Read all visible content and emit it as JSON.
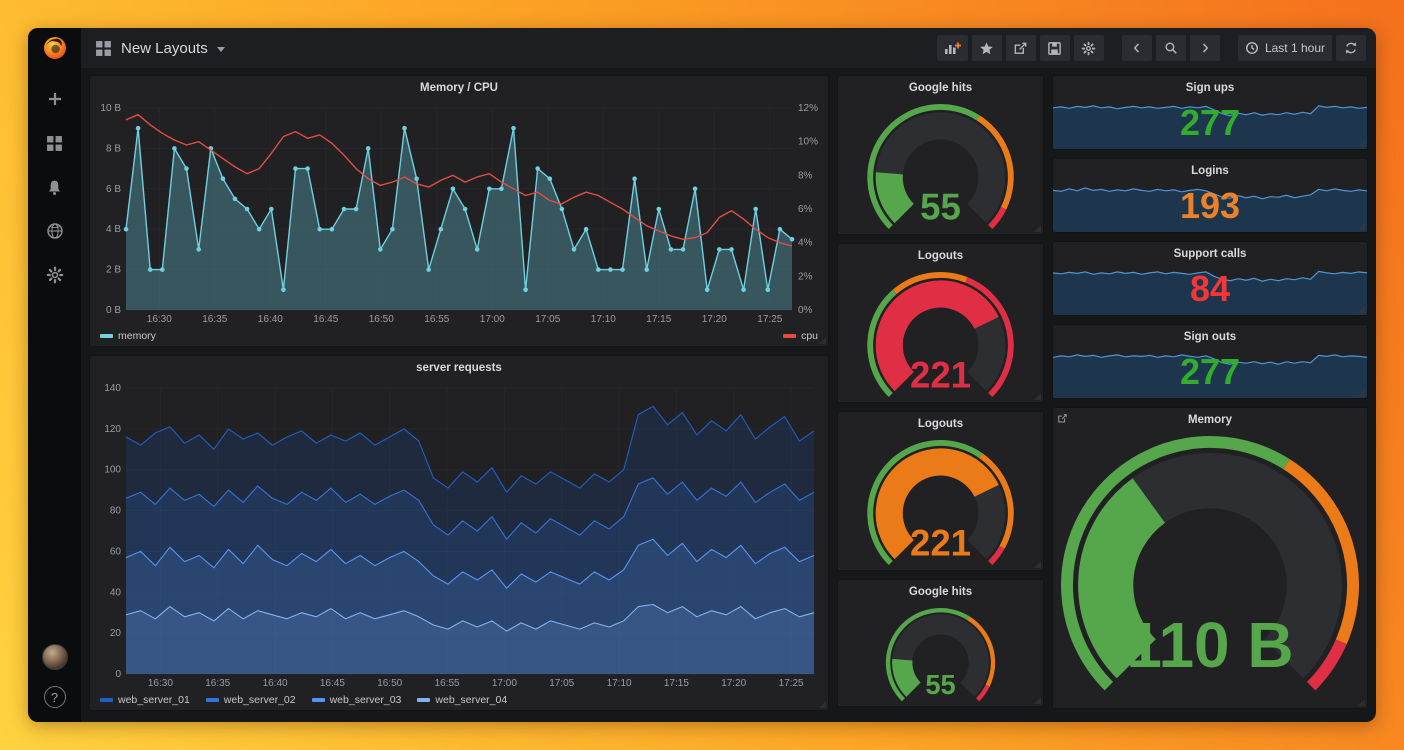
{
  "navbar": {
    "title": "New Layouts",
    "time_range_label": "Last 1 hour"
  },
  "sidebar": {
    "items": [
      {
        "icon": "plus-icon"
      },
      {
        "icon": "dashboards-grid-icon"
      },
      {
        "icon": "bell-icon"
      },
      {
        "icon": "globe-icon"
      },
      {
        "icon": "gear-icon"
      }
    ],
    "bottom": [
      {
        "icon": "user-avatar"
      },
      {
        "icon": "help-icon"
      }
    ]
  },
  "toolbar_icons": [
    "add-panel-icon",
    "star-icon",
    "share-icon",
    "save-icon",
    "gear-icon",
    "chevron-left-icon",
    "magnifier-icon",
    "chevron-right-icon",
    "clock-icon",
    "refresh-icon"
  ],
  "colors": {
    "green": "#56a64b",
    "orange": "#eb7b18",
    "red": "#e02f44",
    "stat_green": "#32ac2d",
    "stat_orange": "#ed8128",
    "stat_red": "#f53636",
    "grid": "#25272c",
    "axis_text": "#9a9da3",
    "spark_line": "#4e95d6",
    "spark_fill": "rgba(24,94,158,0.35)"
  },
  "chart_data": [
    {
      "id": "memory_cpu",
      "type": "line",
      "title": "Memory / CPU",
      "x_ticks": [
        {
          "label": "16:30",
          "pos": 0.05
        },
        {
          "label": "16:35",
          "pos": 0.1333
        },
        {
          "label": "16:40",
          "pos": 0.2167
        },
        {
          "label": "16:45",
          "pos": 0.3
        },
        {
          "label": "16:50",
          "pos": 0.3833
        },
        {
          "label": "16:55",
          "pos": 0.4667
        },
        {
          "label": "17:00",
          "pos": 0.55
        },
        {
          "label": "17:05",
          "pos": 0.6333
        },
        {
          "label": "17:10",
          "pos": 0.7167
        },
        {
          "label": "17:15",
          "pos": 0.8
        },
        {
          "label": "17:20",
          "pos": 0.8833
        },
        {
          "label": "17:25",
          "pos": 0.9667
        }
      ],
      "y_left": {
        "max": 10,
        "ticks": [
          "10 B",
          "8 B",
          "6 B",
          "4 B",
          "2 B",
          "0 B"
        ],
        "tick_vals": [
          10,
          8,
          6,
          4,
          2,
          0
        ]
      },
      "y_right": {
        "max": 12,
        "ticks": [
          "12%",
          "10%",
          "8%",
          "6%",
          "4%",
          "2%",
          "0%"
        ],
        "tick_vals": [
          12,
          10,
          8,
          6,
          4,
          2,
          0
        ]
      },
      "series": [
        {
          "name": "memory",
          "color": "#6ed0e0",
          "axis": "left",
          "fill": 0.3,
          "markers": true,
          "width": 1.4,
          "values": [
            4,
            9,
            2,
            2,
            8,
            7,
            3,
            8,
            6.5,
            5.5,
            5,
            4,
            5,
            1,
            7,
            7,
            4,
            4,
            5,
            5,
            8,
            3,
            4,
            9,
            6.5,
            2,
            4,
            6,
            5,
            3,
            6,
            6,
            9,
            1,
            7,
            6.5,
            5,
            3,
            4,
            2,
            2,
            2,
            6.5,
            2,
            5,
            3,
            3,
            6,
            1,
            3,
            3,
            1,
            5,
            1,
            4,
            3.5
          ]
        },
        {
          "name": "cpu",
          "color": "#e24d42",
          "axis": "right",
          "fill": 0,
          "markers": false,
          "width": 1.4,
          "values": [
            11.3,
            11.6,
            11,
            10.5,
            10.1,
            9.8,
            10,
            9.5,
            9,
            8.5,
            8.1,
            8.4,
            9.3,
            10.3,
            10.6,
            10.2,
            10.4,
            9.9,
            9.2,
            8.4,
            7.8,
            7.4,
            7.6,
            7.9,
            7.5,
            7.3,
            7.7,
            8,
            7.6,
            7.9,
            8.1,
            7.6,
            7.2,
            6.8,
            7,
            6.5,
            6.3,
            6.7,
            7,
            6.8,
            6.4,
            6,
            5.5,
            5,
            4.7,
            4.4,
            4.2,
            4.3,
            4.6,
            5.5,
            5.9,
            5.4,
            4.8,
            4.3,
            4,
            3.8
          ]
        }
      ]
    },
    {
      "id": "server_requests",
      "type": "area",
      "title": "server requests",
      "x_ticks": [
        {
          "label": "16:30",
          "pos": 0.05
        },
        {
          "label": "16:35",
          "pos": 0.1333
        },
        {
          "label": "16:40",
          "pos": 0.2167
        },
        {
          "label": "16:45",
          "pos": 0.3
        },
        {
          "label": "16:50",
          "pos": 0.3833
        },
        {
          "label": "16:55",
          "pos": 0.4667
        },
        {
          "label": "17:00",
          "pos": 0.55
        },
        {
          "label": "17:05",
          "pos": 0.6333
        },
        {
          "label": "17:10",
          "pos": 0.7167
        },
        {
          "label": "17:15",
          "pos": 0.8
        },
        {
          "label": "17:20",
          "pos": 0.8833
        },
        {
          "label": "17:25",
          "pos": 0.9667
        }
      ],
      "y_left": {
        "max": 140,
        "ticks": [
          "140",
          "120",
          "100",
          "80",
          "60",
          "40",
          "20",
          "0"
        ],
        "tick_vals": [
          140,
          120,
          100,
          80,
          60,
          40,
          20,
          0
        ]
      },
      "series": [
        {
          "name": "web_server_01",
          "color": "#1f60c4",
          "axis": "left",
          "fill": 0.16,
          "markers": false,
          "width": 1.1,
          "values": [
            116,
            112,
            118,
            121,
            113,
            117,
            110,
            120,
            115,
            118,
            112,
            116,
            119,
            113,
            117,
            114,
            118,
            112,
            116,
            120,
            114,
            96,
            91,
            99,
            94,
            101,
            89,
            97,
            93,
            99,
            95,
            91,
            98,
            94,
            100,
            127,
            131,
            122,
            128,
            117,
            124,
            119,
            127,
            115,
            121,
            126,
            114,
            119
          ]
        },
        {
          "name": "web_server_02",
          "color": "#3274d9",
          "axis": "left",
          "fill": 0.16,
          "markers": false,
          "width": 1.1,
          "values": [
            86,
            89,
            83,
            91,
            85,
            88,
            82,
            90,
            84,
            92,
            86,
            83,
            89,
            85,
            91,
            84,
            88,
            83,
            87,
            90,
            85,
            73,
            68,
            75,
            70,
            77,
            66,
            74,
            69,
            76,
            72,
            68,
            75,
            71,
            77,
            93,
            96,
            88,
            94,
            85,
            91,
            87,
            94,
            84,
            89,
            93,
            85,
            89
          ]
        },
        {
          "name": "web_server_03",
          "color": "#5794f2",
          "axis": "left",
          "fill": 0.16,
          "markers": false,
          "width": 1.1,
          "values": [
            57,
            60,
            53,
            62,
            55,
            58,
            52,
            61,
            54,
            63,
            56,
            53,
            59,
            55,
            61,
            54,
            58,
            53,
            57,
            60,
            55,
            48,
            44,
            50,
            46,
            51,
            42,
            49,
            45,
            50,
            47,
            44,
            50,
            46,
            51,
            63,
            66,
            58,
            64,
            55,
            61,
            57,
            63,
            54,
            59,
            62,
            55,
            58
          ]
        },
        {
          "name": "web_server_04",
          "color": "#7eb3f2",
          "axis": "left",
          "fill": 0.16,
          "markers": false,
          "width": 1.1,
          "values": [
            29,
            31,
            27,
            33,
            28,
            30,
            26,
            32,
            27,
            31,
            29,
            27,
            30,
            28,
            32,
            27,
            30,
            27,
            29,
            31,
            28,
            24,
            22,
            26,
            23,
            26,
            21,
            25,
            22,
            26,
            24,
            22,
            25,
            23,
            26,
            33,
            34,
            30,
            33,
            28,
            31,
            29,
            33,
            27,
            30,
            32,
            28,
            30
          ]
        }
      ]
    },
    {
      "id": "gauge_google_hits",
      "type": "gauge",
      "title": "Google hits",
      "value": "55",
      "min": 0,
      "max": 300,
      "fraction": 0.183,
      "color": "#56a64b",
      "ring": [
        {
          "to": 0.62,
          "color": "#56a64b"
        },
        {
          "to": 0.93,
          "color": "#eb7b18"
        },
        {
          "to": 1,
          "color": "#e02f44"
        }
      ]
    },
    {
      "id": "gauge_logouts_red",
      "type": "gauge",
      "title": "Logouts",
      "value": "221",
      "min": 0,
      "max": 300,
      "fraction": 0.737,
      "color": "#e02f44",
      "ring": [
        {
          "to": 0.35,
          "color": "#56a64b"
        },
        {
          "to": 0.58,
          "color": "#eb7b18"
        },
        {
          "to": 1,
          "color": "#e02f44"
        }
      ]
    },
    {
      "id": "gauge_logouts_orange",
      "type": "gauge",
      "title": "Logouts",
      "value": "221",
      "min": 0,
      "max": 300,
      "fraction": 0.737,
      "color": "#eb7b18",
      "ring": [
        {
          "to": 0.63,
          "color": "#56a64b"
        },
        {
          "to": 0.94,
          "color": "#eb7b18"
        },
        {
          "to": 1,
          "color": "#e02f44"
        }
      ]
    },
    {
      "id": "gauge_google_hits_small",
      "type": "gauge",
      "title": "Google hits",
      "value": "55",
      "min": 0,
      "max": 300,
      "fraction": 0.183,
      "color": "#56a64b",
      "ring": [
        {
          "to": 0.62,
          "color": "#56a64b"
        },
        {
          "to": 0.93,
          "color": "#eb7b18"
        },
        {
          "to": 1,
          "color": "#e02f44"
        }
      ]
    },
    {
      "id": "stat_sign_ups",
      "type": "stat",
      "title": "Sign ups",
      "value": "277",
      "color": "#32ac2d",
      "spark": [
        0.84,
        0.86,
        0.83,
        0.87,
        0.85,
        0.88,
        0.84,
        0.86,
        0.82,
        0.85,
        0.87,
        0.84,
        0.86,
        0.83,
        0.85,
        0.87,
        0.83,
        0.86,
        0.84,
        0.87,
        0.8,
        0.72,
        0.68,
        0.73,
        0.7,
        0.74,
        0.69,
        0.72,
        0.7,
        0.74,
        0.71,
        0.75,
        0.72,
        0.88,
        0.85,
        0.87,
        0.84,
        0.86,
        0.83,
        0.85
      ]
    },
    {
      "id": "stat_logins",
      "type": "stat",
      "title": "Logins",
      "value": "193",
      "color": "#ed8128",
      "spark": [
        0.85,
        0.83,
        0.88,
        0.84,
        0.9,
        0.85,
        0.87,
        0.83,
        0.86,
        0.84,
        0.88,
        0.85,
        0.83,
        0.87,
        0.84,
        0.86,
        0.82,
        0.85,
        0.87,
        0.84,
        0.78,
        0.71,
        0.69,
        0.74,
        0.7,
        0.73,
        0.68,
        0.72,
        0.71,
        0.75,
        0.7,
        0.73,
        0.76,
        0.87,
        0.84,
        0.88,
        0.85,
        0.83,
        0.86,
        0.84
      ]
    },
    {
      "id": "stat_support_calls",
      "type": "stat",
      "title": "Support calls",
      "value": "84",
      "color": "#f53636",
      "spark": [
        0.86,
        0.84,
        0.87,
        0.85,
        0.88,
        0.83,
        0.86,
        0.84,
        0.88,
        0.85,
        0.87,
        0.83,
        0.86,
        0.88,
        0.84,
        0.87,
        0.85,
        0.83,
        0.86,
        0.88,
        0.79,
        0.73,
        0.7,
        0.74,
        0.71,
        0.75,
        0.69,
        0.73,
        0.7,
        0.74,
        0.72,
        0.76,
        0.73,
        0.89,
        0.86,
        0.84,
        0.87,
        0.85,
        0.88,
        0.86
      ]
    },
    {
      "id": "stat_sign_outs",
      "type": "stat",
      "title": "Sign outs",
      "value": "277",
      "color": "#32ac2d",
      "spark": [
        0.83,
        0.86,
        0.84,
        0.88,
        0.85,
        0.87,
        0.83,
        0.86,
        0.88,
        0.84,
        0.86,
        0.85,
        0.87,
        0.83,
        0.86,
        0.84,
        0.88,
        0.85,
        0.83,
        0.86,
        0.8,
        0.72,
        0.69,
        0.73,
        0.71,
        0.74,
        0.7,
        0.73,
        0.69,
        0.74,
        0.71,
        0.74,
        0.72,
        0.87,
        0.85,
        0.88,
        0.84,
        0.86,
        0.85,
        0.83
      ]
    },
    {
      "id": "gauge_memory",
      "type": "gauge",
      "title": "Memory",
      "value": "110 B",
      "min": 0,
      "max": 300,
      "fraction": 0.367,
      "color": "#56a64b",
      "ring": [
        {
          "to": 0.62,
          "color": "#56a64b"
        },
        {
          "to": 0.92,
          "color": "#eb7b18"
        },
        {
          "to": 1,
          "color": "#e02f44"
        }
      ]
    }
  ]
}
